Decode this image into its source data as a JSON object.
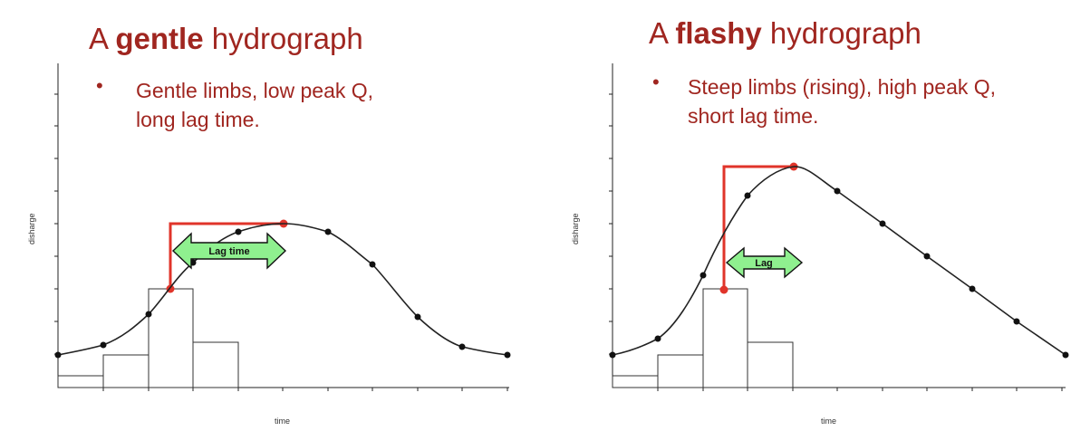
{
  "left": {
    "title_prefix": "A",
    "title_emph": "gentle",
    "title_suffix": "hydrograph",
    "bullet_line1": "Gentle limbs, low peak Q,",
    "bullet_line2": "long lag time.",
    "arrow_label": "Lag time",
    "ylabel": "disharge",
    "xlabel": "time"
  },
  "right": {
    "title_prefix": "A",
    "title_emph": "flashy",
    "title_suffix": "hydrograph",
    "bullet_line1": "Steep limbs (rising), high peak Q,",
    "bullet_line2": "short lag time.",
    "arrow_label": "Lag",
    "ylabel": "disharge",
    "xlabel": "time"
  },
  "bullet_symbol": "•",
  "colors": {
    "title": "#a02620",
    "lag_line": "#e0342a",
    "arrow_fill": "#8ff08f",
    "curve": "#222222"
  }
}
